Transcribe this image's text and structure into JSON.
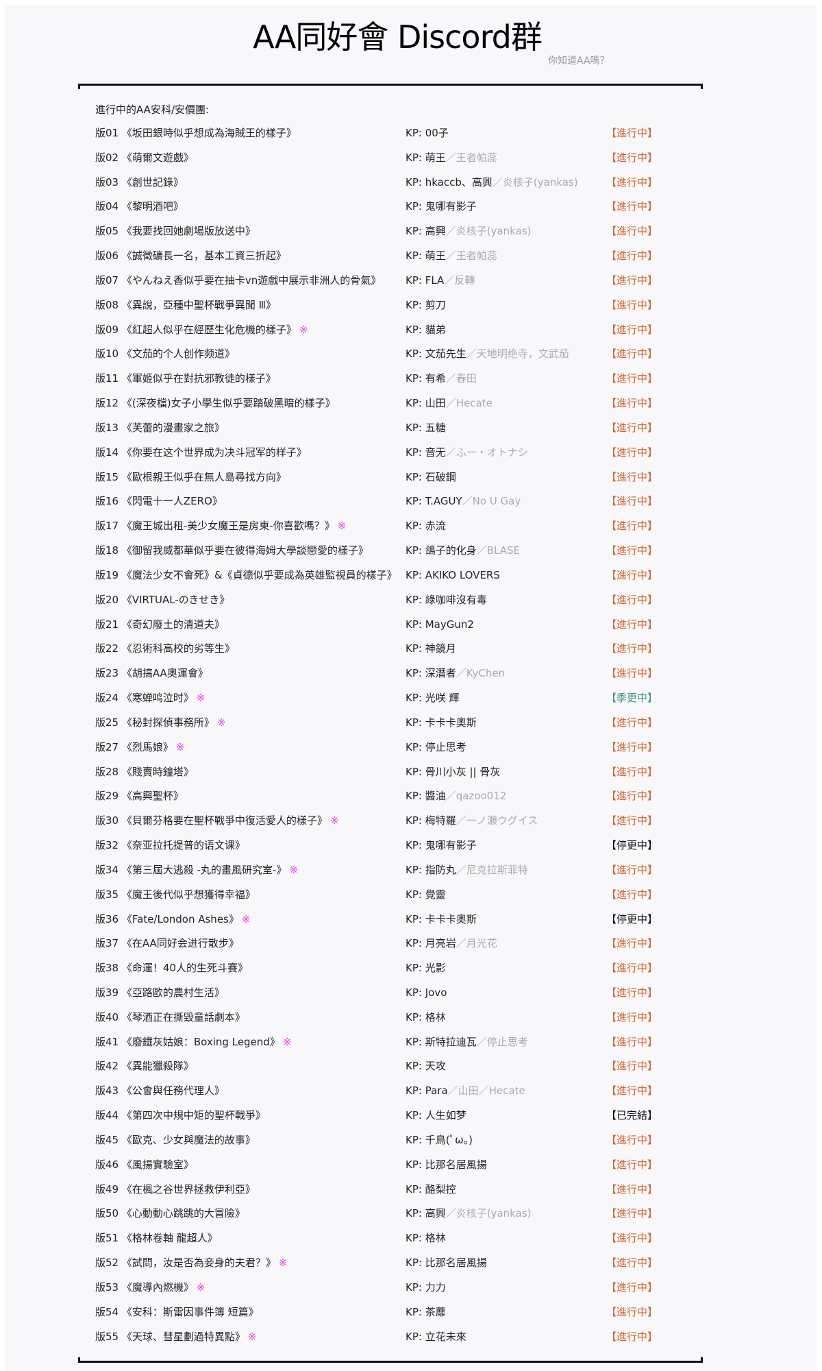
{
  "header": {
    "title": "AA同好會 Discord群",
    "subtitle": "你知道AA嗎？"
  },
  "heading": "進行中的AA安科/安價團:",
  "colors": {
    "in_progress": "#e0602a",
    "season_break": "#3a9a7a",
    "paused": "#111111",
    "finished": "#111111",
    "mark": "#ff33ff",
    "secondary_kp": "#aaaaaa"
  },
  "kp_prefix": "KP: ",
  "rows": [
    {
      "num": "版01",
      "title": "《坂田銀時似乎想成為海賊王的樣子》",
      "mark": "",
      "kp": "00子",
      "kp_alt": "",
      "status": "【進行中】",
      "tone": "orange"
    },
    {
      "num": "版02",
      "title": "《萌爾文遊戲》",
      "mark": "",
      "kp": "萌王",
      "kp_alt": "／王者帕蕊",
      "status": "【進行中】",
      "tone": "orange"
    },
    {
      "num": "版03",
      "title": "《創世記錄》",
      "mark": "",
      "kp": "hkaccb、高興",
      "kp_alt": "／炎核子(yankas)",
      "status": "【進行中】",
      "tone": "orange"
    },
    {
      "num": "版04",
      "title": "《黎明酒吧》",
      "mark": "",
      "kp": "鬼哪有影子",
      "kp_alt": "",
      "status": "【進行中】",
      "tone": "orange"
    },
    {
      "num": "版05",
      "title": "《我要找回她劇場版放送中》",
      "mark": "",
      "kp": "高興",
      "kp_alt": "／炎核子(yankas)",
      "status": "【進行中】",
      "tone": "orange"
    },
    {
      "num": "版06",
      "title": "《誠徵礦長一名，基本工資三折起》",
      "mark": "",
      "kp": "萌王",
      "kp_alt": "／王者帕蕊",
      "status": "【進行中】",
      "tone": "orange"
    },
    {
      "num": "版07",
      "title": "《やんねえ香似乎要在抽卡vn遊戲中展示非洲人的骨氣》",
      "mark": "",
      "kp": "FLA",
      "kp_alt": "／反轉",
      "status": "【進行中】",
      "tone": "orange"
    },
    {
      "num": "版08",
      "title": "《異說，亞種中聖杯戰爭異聞 Ⅲ》",
      "mark": "",
      "kp": "剪刀",
      "kp_alt": "",
      "status": "【進行中】",
      "tone": "orange"
    },
    {
      "num": "版09",
      "title": "《紅超人似乎在經歷生化危機的樣子》",
      "mark": "※",
      "kp": "貓弟",
      "kp_alt": "",
      "status": "【進行中】",
      "tone": "orange"
    },
    {
      "num": "版10",
      "title": "《文茄的个人创作频道》",
      "mark": "",
      "kp": "文茄先生",
      "kp_alt": "／天地明绝寺，文武茄",
      "status": "【進行中】",
      "tone": "orange"
    },
    {
      "num": "版11",
      "title": "《軍姬似乎在對抗邪教徒的樣子》",
      "mark": "",
      "kp": "有希",
      "kp_alt": "／春田",
      "status": "【進行中】",
      "tone": "orange"
    },
    {
      "num": "版12",
      "title": "《(深夜檔)女子小學生似乎要踏破黑暗的樣子》",
      "mark": "",
      "kp": "山田",
      "kp_alt": "／Hecate",
      "status": "【進行中】",
      "tone": "orange"
    },
    {
      "num": "版13",
      "title": "《芙蕾的漫畫家之旅》",
      "mark": "",
      "kp": "五糖",
      "kp_alt": "",
      "status": "【進行中】",
      "tone": "orange"
    },
    {
      "num": "版14",
      "title": "《你要在这个世界成为决斗冠军的样子》",
      "mark": "",
      "kp": "音无",
      "kp_alt": "／ふー・オトナシ",
      "status": "【進行中】",
      "tone": "orange"
    },
    {
      "num": "版15",
      "title": "《歐根親王似乎在無人島尋找方向》",
      "mark": "",
      "kp": "石破鋼",
      "kp_alt": "",
      "status": "【進行中】",
      "tone": "orange"
    },
    {
      "num": "版16",
      "title": "《閃電十一人ZERO》",
      "mark": "",
      "kp": "T.AGUY",
      "kp_alt": "／No U Gay",
      "status": "【進行中】",
      "tone": "orange"
    },
    {
      "num": "版17",
      "title": "《魔王城出租-美少女魔王是房東-你喜歡嗎？》",
      "mark": "※",
      "kp": "赤流",
      "kp_alt": "",
      "status": "【進行中】",
      "tone": "orange"
    },
    {
      "num": "版18",
      "title": "《御留我威都華似乎要在彼得海姆大學談戀愛的樣子》",
      "mark": "",
      "kp": "鴿子的化身",
      "kp_alt": "／BLASE",
      "status": "【進行中】",
      "tone": "orange"
    },
    {
      "num": "版19",
      "title": "《魔法少女不會死》&《貞德似乎要成為英雄監視員的樣子》",
      "mark": "",
      "kp": "AKIKO LOVERS",
      "kp_alt": "",
      "status": "【進行中】",
      "tone": "orange"
    },
    {
      "num": "版20",
      "title": "《VIRTUAL-のきせき》",
      "mark": "",
      "kp": "綠咖啡沒有毒",
      "kp_alt": "",
      "status": "【進行中】",
      "tone": "orange"
    },
    {
      "num": "版21",
      "title": "《奇幻廢土的清道夫》",
      "mark": "",
      "kp": "MayGun2",
      "kp_alt": "",
      "status": "【進行中】",
      "tone": "orange"
    },
    {
      "num": "版22",
      "title": "《忍術科高校的劣等生》",
      "mark": "",
      "kp": "神鏡月",
      "kp_alt": "",
      "status": "【進行中】",
      "tone": "orange"
    },
    {
      "num": "版23",
      "title": "《胡搞AA奧運會》",
      "mark": "",
      "kp": "深潛者",
      "kp_alt": "／KyChen",
      "status": "【進行中】",
      "tone": "orange"
    },
    {
      "num": "版24",
      "title": "《寒蝉鸣泣时》",
      "mark": "※",
      "kp": "光咲 輝",
      "kp_alt": "",
      "status": "【季更中】",
      "tone": "green"
    },
    {
      "num": "版25",
      "title": "《秘封探偵事務所》",
      "mark": "※",
      "kp": "卡卡卡奧斯",
      "kp_alt": "",
      "status": "【進行中】",
      "tone": "orange"
    },
    {
      "num": "版27",
      "title": "《烈馬娘》",
      "mark": "※",
      "kp": "停止思考",
      "kp_alt": "",
      "status": "【進行中】",
      "tone": "orange"
    },
    {
      "num": "版28",
      "title": "《賤賣時鐘塔》",
      "mark": "",
      "kp": "骨川小灰 || 骨灰",
      "kp_alt": "",
      "status": "【進行中】",
      "tone": "orange"
    },
    {
      "num": "版29",
      "title": "《高興聖杯》",
      "mark": "",
      "kp": "醬油",
      "kp_alt": "／qazoo012",
      "status": "【進行中】",
      "tone": "orange"
    },
    {
      "num": "版30",
      "title": "《貝爾芬格要在聖杯戰爭中復活愛人的樣子》",
      "mark": "※",
      "kp": "梅特羅",
      "kp_alt": "／一ノ瀬ウグイス",
      "status": "【進行中】",
      "tone": "orange"
    },
    {
      "num": "版32",
      "title": "《奈亚拉托提普的语文课》",
      "mark": "",
      "kp": "鬼哪有影子",
      "kp_alt": "",
      "status": "【停更中】",
      "tone": "black"
    },
    {
      "num": "版34",
      "title": "《第三屆大逃殺 -丸的畫風研究室-》",
      "mark": "※",
      "kp": "指防丸",
      "kp_alt": "／尼克拉斯菲特",
      "status": "【進行中】",
      "tone": "orange"
    },
    {
      "num": "版35",
      "title": "《魔王後代似乎想獲得幸福》",
      "mark": "",
      "kp": "覺靈",
      "kp_alt": "",
      "status": "【進行中】",
      "tone": "orange"
    },
    {
      "num": "版36",
      "title": "《Fate/London Ashes》",
      "mark": "※",
      "kp": "卡卡卡奧斯",
      "kp_alt": "",
      "status": "【停更中】",
      "tone": "black"
    },
    {
      "num": "版37",
      "title": "《在AA同好会进行散步》",
      "mark": "",
      "kp": "月亮岩",
      "kp_alt": "／月光花",
      "status": "【進行中】",
      "tone": "orange"
    },
    {
      "num": "版38",
      "title": "《命運！40人的生死斗賽》",
      "mark": "",
      "kp": "光影",
      "kp_alt": "",
      "status": "【進行中】",
      "tone": "orange"
    },
    {
      "num": "版39",
      "title": "《亞路歐的農村生活》",
      "mark": "",
      "kp": "Jovo",
      "kp_alt": "",
      "status": "【進行中】",
      "tone": "orange"
    },
    {
      "num": "版40",
      "title": "《琴酒正在撕毀童話劇本》",
      "mark": "",
      "kp": "格林",
      "kp_alt": "",
      "status": "【進行中】",
      "tone": "orange"
    },
    {
      "num": "版41",
      "title": "《廢鐵灰姑娘：Boxing Legend》",
      "mark": "※",
      "kp": "斯特拉迪瓦",
      "kp_alt": "／停止思考",
      "status": "【進行中】",
      "tone": "orange"
    },
    {
      "num": "版42",
      "title": "《異能獵殺隊》",
      "mark": "",
      "kp": "天攻",
      "kp_alt": "",
      "status": "【進行中】",
      "tone": "orange"
    },
    {
      "num": "版43",
      "title": "《公會與任務代理人》",
      "mark": "",
      "kp": "Para",
      "kp_alt": "／山田／Hecate",
      "status": "【進行中】",
      "tone": "orange"
    },
    {
      "num": "版44",
      "title": "《第四次中規中矩的聖杯戰爭》",
      "mark": "",
      "kp": "人生如梦",
      "kp_alt": "",
      "status": "【已完結】",
      "tone": "black"
    },
    {
      "num": "版45",
      "title": "《歐克、少女與魔法的故事》",
      "mark": "",
      "kp": "千鳥(ﾟω。)",
      "kp_alt": "",
      "status": "【進行中】",
      "tone": "orange"
    },
    {
      "num": "版46",
      "title": "《風揚實驗室》",
      "mark": "",
      "kp": "比那名居風揚",
      "kp_alt": "",
      "status": "【進行中】",
      "tone": "orange"
    },
    {
      "num": "版49",
      "title": "《在楓之谷世界拯救伊利亞》",
      "mark": "",
      "kp": "酪梨控",
      "kp_alt": "",
      "status": "【進行中】",
      "tone": "orange"
    },
    {
      "num": "版50",
      "title": "《心動動心跳跳的大冒險》",
      "mark": "",
      "kp": "高興",
      "kp_alt": "／炎核子(yankas)",
      "status": "【進行中】",
      "tone": "orange"
    },
    {
      "num": "版51",
      "title": "《格林卷軸 龍超人》",
      "mark": "",
      "kp": "格林",
      "kp_alt": "",
      "status": "【進行中】",
      "tone": "orange"
    },
    {
      "num": "版52",
      "title": "《試問，汝是否為妾身的夫君？》",
      "mark": "※",
      "kp": "比那名居風揚",
      "kp_alt": "",
      "status": "【進行中】",
      "tone": "orange"
    },
    {
      "num": "版53",
      "title": "《魔導內燃機》",
      "mark": "※",
      "kp": "力力",
      "kp_alt": "",
      "status": "【進行中】",
      "tone": "orange"
    },
    {
      "num": "版54",
      "title": "《安科：斯雷因事件簿 短篇》",
      "mark": "",
      "kp": "茶蘼",
      "kp_alt": "",
      "status": "【進行中】",
      "tone": "orange"
    },
    {
      "num": "版55",
      "title": "《天球、彗星劃過特異點》",
      "mark": "※",
      "kp": "立花未來",
      "kp_alt": "",
      "status": "【進行中】",
      "tone": "orange"
    }
  ]
}
